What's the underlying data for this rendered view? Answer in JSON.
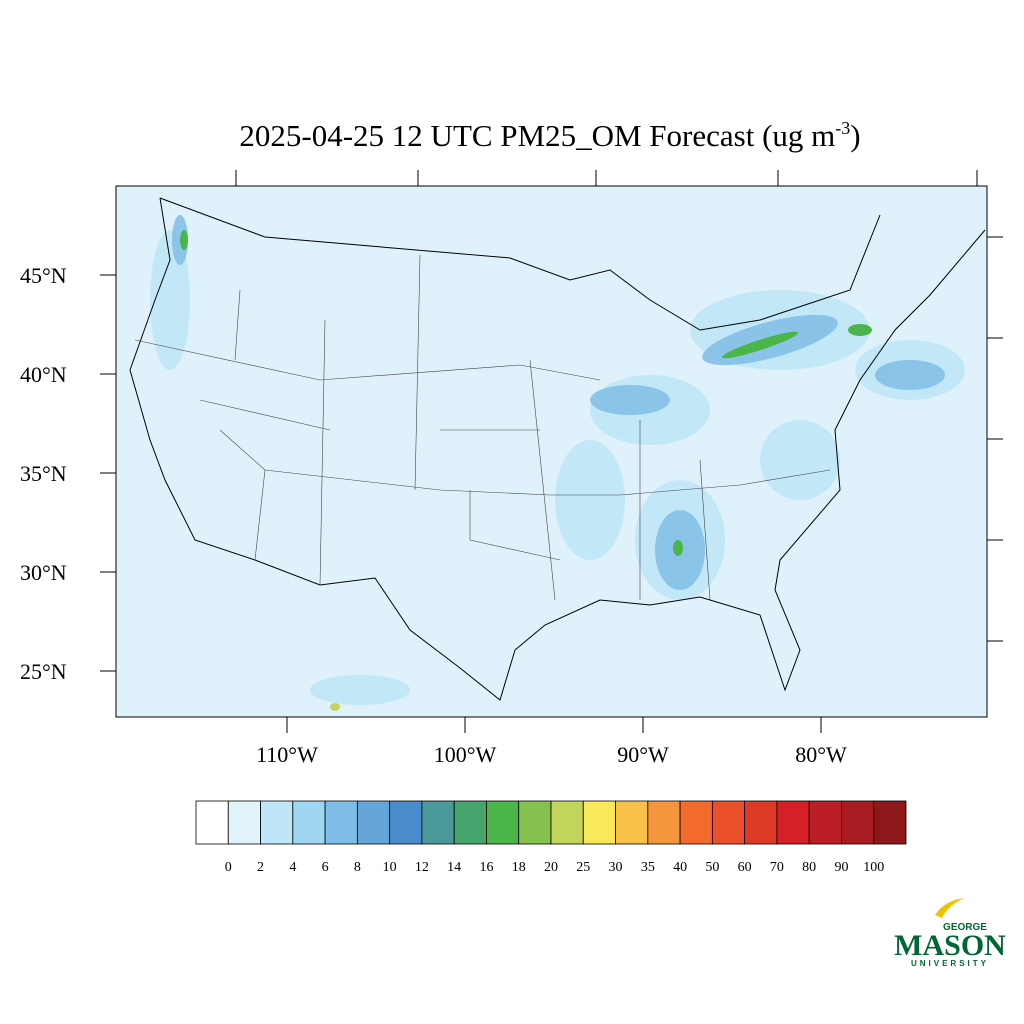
{
  "map": {
    "title": {
      "text": "2025-04-25 12 UTC PM25_OM Forecast (ug m",
      "superscript": "-3",
      "suffix": ")"
    },
    "lat_ticks": [
      {
        "value": 45,
        "label": "45°N"
      },
      {
        "value": 40,
        "label": "40°N"
      },
      {
        "value": 35,
        "label": "35°N"
      },
      {
        "value": 30,
        "label": "30°N"
      },
      {
        "value": 25,
        "label": "25°N"
      }
    ],
    "lon_ticks": [
      {
        "value": -110,
        "label": "110°W"
      },
      {
        "value": -100,
        "label": "100°W"
      },
      {
        "value": -90,
        "label": "90°W"
      },
      {
        "value": -80,
        "label": "80°W"
      }
    ],
    "colorbar": {
      "levels": [
        0,
        2,
        4,
        6,
        8,
        10,
        12,
        14,
        16,
        18,
        20,
        25,
        30,
        35,
        40,
        50,
        60,
        70,
        80,
        90,
        100
      ],
      "colors": [
        "#ffffff",
        "#e0f3fb",
        "#bfe6f6",
        "#9fd7f2",
        "#80bde6",
        "#66a5da",
        "#4a8ccb",
        "#4a9a9a",
        "#46a56d",
        "#4ab548",
        "#84c24d",
        "#c3d45a",
        "#f8e85a",
        "#f8c049",
        "#f5953c",
        "#f26a2c",
        "#e9502b",
        "#de3a26",
        "#d52029",
        "#bb1e25",
        "#a81b20",
        "#8e171a"
      ]
    },
    "logo": {
      "top": "GEORGE",
      "main": "MASON",
      "bottom": "UNIVERSITY"
    }
  }
}
